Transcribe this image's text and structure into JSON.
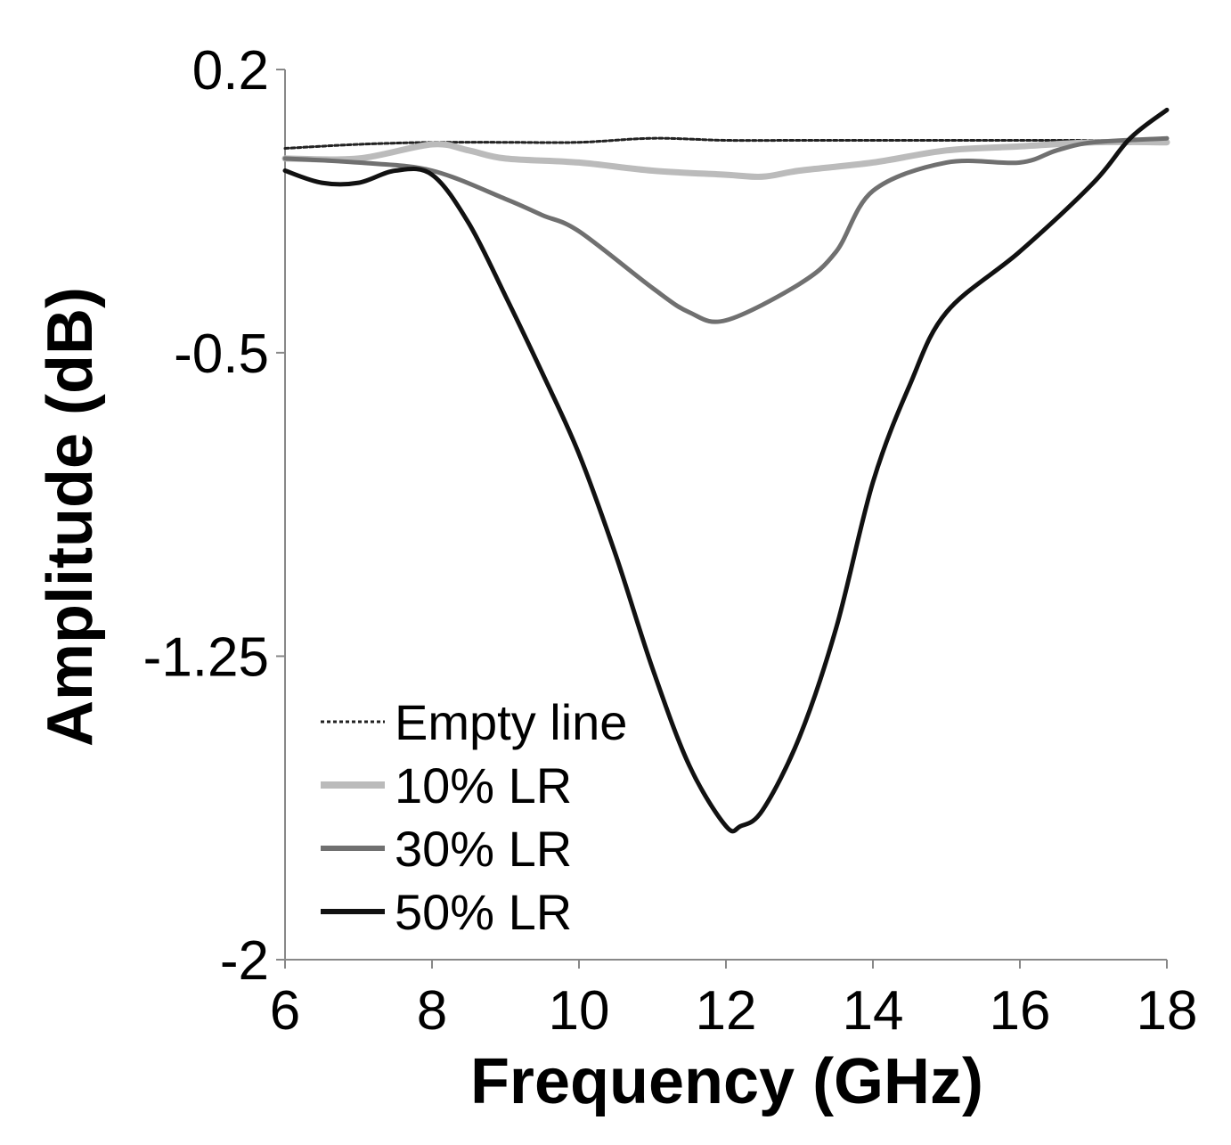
{
  "chart_data": {
    "type": "line",
    "title": "",
    "xlabel": "Frequency (GHz)",
    "ylabel": "Amplitude (dB)",
    "xlim": [
      6,
      18
    ],
    "ylim": [
      -2,
      0.2
    ],
    "xticks": [
      6,
      8,
      10,
      12,
      14,
      16,
      18
    ],
    "xtick_labels": [
      "6",
      "8",
      "10",
      "12",
      "14",
      "16",
      "18"
    ],
    "yticks": [
      0.2,
      -0.5,
      -1.25,
      -2
    ],
    "ytick_labels": [
      "0.2",
      "-0.5",
      "-1.25",
      "-2"
    ],
    "grid": false,
    "legend_position": "bottom-left",
    "series": [
      {
        "name": "Empty line",
        "style": "dotted",
        "color": "#222222",
        "x": [
          6,
          7,
          8,
          9,
          10,
          11,
          12,
          13,
          14,
          15,
          16,
          17,
          18
        ],
        "y": [
          0.005,
          0.015,
          0.02,
          0.02,
          0.02,
          0.03,
          0.025,
          0.025,
          0.025,
          0.025,
          0.025,
          0.025,
          0.025
        ]
      },
      {
        "name": "10% LR",
        "style": "thick",
        "color": "#bbbbbb",
        "x": [
          6,
          7,
          8,
          8.5,
          9,
          10,
          11,
          12,
          12.5,
          13,
          14,
          15,
          16,
          17,
          18
        ],
        "y": [
          -0.02,
          -0.02,
          0.015,
          0.0,
          -0.02,
          -0.03,
          -0.05,
          -0.06,
          -0.065,
          -0.05,
          -0.03,
          0.0,
          0.01,
          0.02,
          0.02
        ]
      },
      {
        "name": "30% LR",
        "style": "solid",
        "color": "#707070",
        "x": [
          6,
          7,
          8,
          9,
          9.5,
          10,
          11,
          11.5,
          12,
          13,
          13.5,
          14,
          15,
          16,
          16.5,
          17,
          18
        ],
        "y": [
          -0.02,
          -0.03,
          -0.05,
          -0.12,
          -0.16,
          -0.2,
          -0.34,
          -0.4,
          -0.42,
          -0.33,
          -0.25,
          -0.1,
          -0.03,
          -0.03,
          0.0,
          0.02,
          0.03
        ]
      },
      {
        "name": "50% LR",
        "style": "solid",
        "color": "#111111",
        "x": [
          6,
          6.5,
          7,
          7.5,
          8,
          8.5,
          9,
          9.5,
          10,
          10.5,
          11,
          11.5,
          12,
          12.2,
          12.5,
          13,
          13.5,
          14,
          14.5,
          15,
          16,
          17,
          17.5,
          18
        ],
        "y": [
          -0.05,
          -0.08,
          -0.08,
          -0.05,
          -0.06,
          -0.18,
          -0.36,
          -0.55,
          -0.75,
          -1.0,
          -1.28,
          -1.52,
          -1.67,
          -1.67,
          -1.63,
          -1.45,
          -1.18,
          -0.82,
          -0.58,
          -0.4,
          -0.25,
          -0.08,
          0.03,
          0.1
        ]
      }
    ]
  }
}
